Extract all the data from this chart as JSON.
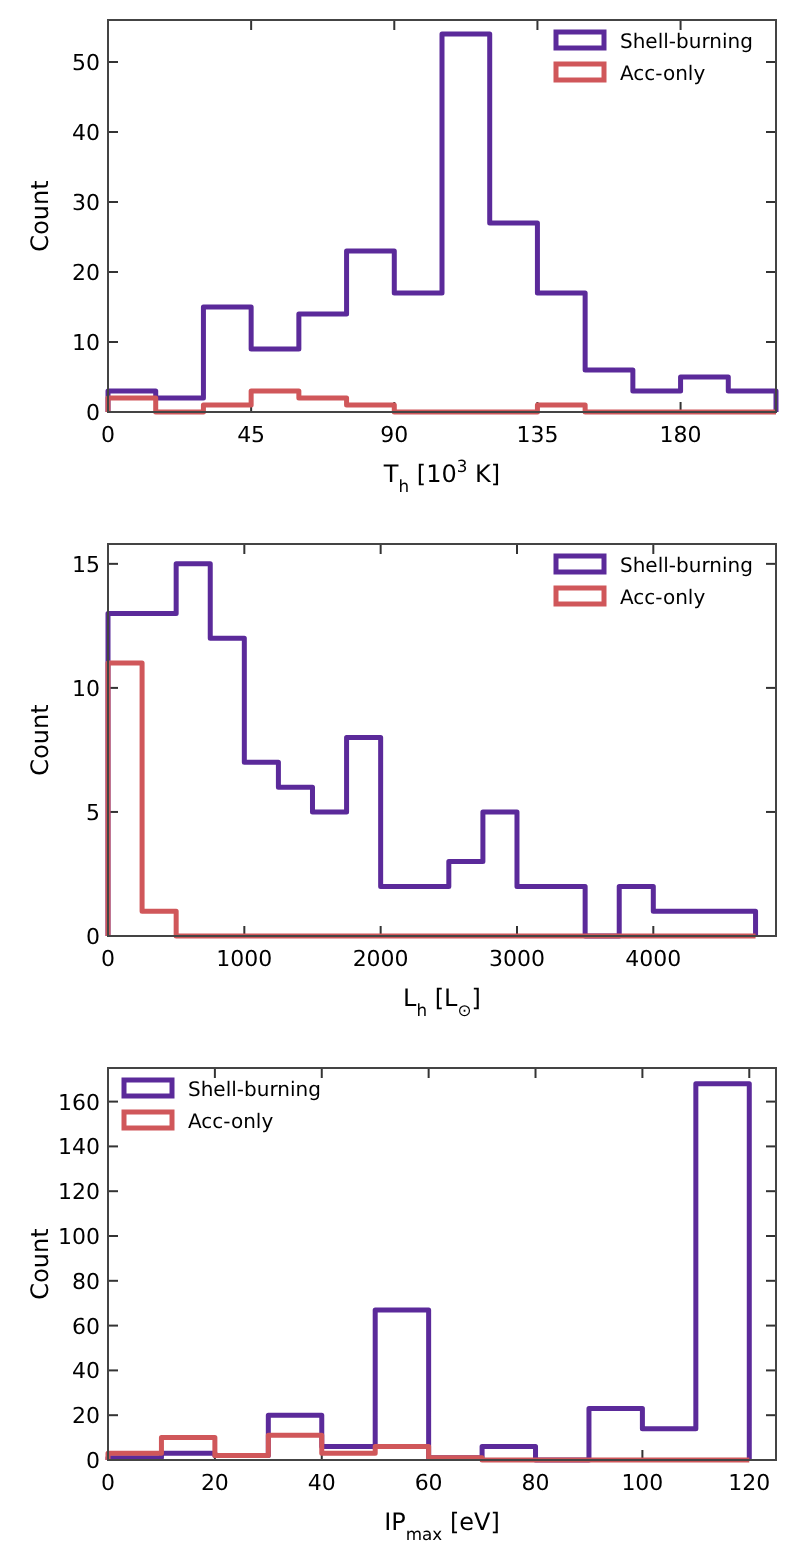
{
  "chart_data": [
    {
      "type": "histogram",
      "xlabel": "T$_{h}$ [10$^{3}$ K]",
      "ylabel": "Count",
      "bins": [
        0,
        15,
        30,
        45,
        60,
        75,
        90,
        105,
        120,
        135,
        150,
        165,
        180,
        195,
        210
      ],
      "xlim": [
        0,
        210
      ],
      "xticks": [
        0,
        45,
        90,
        135,
        180
      ],
      "ylim": [
        0,
        56
      ],
      "yticks": [
        0,
        10,
        20,
        30,
        40,
        50
      ],
      "legend": "top right",
      "series": [
        {
          "name": "Shell-burning",
          "color": "#5b2a9a",
          "values": [
            3,
            2,
            15,
            9,
            14,
            23,
            17,
            54,
            27,
            17,
            6,
            3,
            5,
            3
          ]
        },
        {
          "name": "Acc-only",
          "color": "#d0575a",
          "values": [
            2,
            0,
            1,
            3,
            2,
            1,
            0,
            0,
            0,
            1,
            0,
            0,
            0,
            0
          ]
        }
      ]
    },
    {
      "type": "histogram",
      "xlabel": "L$_{h}$ [L$_{⊙}$]",
      "ylabel": "Count",
      "bins": [
        0,
        250,
        500,
        750,
        1000,
        1250,
        1500,
        1750,
        2000,
        2250,
        2500,
        2750,
        3000,
        3250,
        3500,
        3750,
        4000,
        4250,
        4500,
        4750
      ],
      "xlim": [
        0,
        4900
      ],
      "xticks": [
        0,
        1000,
        2000,
        3000,
        4000
      ],
      "ylim": [
        0,
        15.8
      ],
      "yticks": [
        0,
        5,
        10,
        15
      ],
      "legend": "top right",
      "series": [
        {
          "name": "Shell-burning",
          "color": "#5b2a9a",
          "values": [
            13,
            13,
            15,
            12,
            7,
            6,
            5,
            8,
            2,
            2,
            3,
            5,
            2,
            2,
            0,
            2,
            1,
            1,
            1
          ]
        },
        {
          "name": "Acc-only",
          "color": "#d0575a",
          "values": [
            11,
            1,
            0,
            0,
            0,
            0,
            0,
            0,
            0,
            0,
            0,
            0,
            0,
            0,
            0,
            0,
            0,
            0,
            0
          ]
        }
      ]
    },
    {
      "type": "histogram",
      "xlabel": "IP$_{max}$ [eV]",
      "ylabel": "Count",
      "bins": [
        0,
        10,
        20,
        30,
        40,
        50,
        60,
        70,
        80,
        90,
        100,
        110,
        120
      ],
      "xlim": [
        0,
        125
      ],
      "xticks": [
        0,
        20,
        40,
        60,
        80,
        100,
        120
      ],
      "ylim": [
        0,
        175
      ],
      "yticks": [
        0,
        20,
        40,
        60,
        80,
        100,
        120,
        140,
        160
      ],
      "legend": "top left",
      "series": [
        {
          "name": "Shell-burning",
          "color": "#5b2a9a",
          "values": [
            1,
            3,
            2,
            20,
            6,
            67,
            1,
            6,
            0,
            23,
            14,
            168
          ]
        },
        {
          "name": "Acc-only",
          "color": "#d0575a",
          "values": [
            3,
            10,
            2,
            11,
            3,
            6,
            1,
            0,
            0,
            0,
            0,
            0
          ]
        }
      ]
    }
  ]
}
